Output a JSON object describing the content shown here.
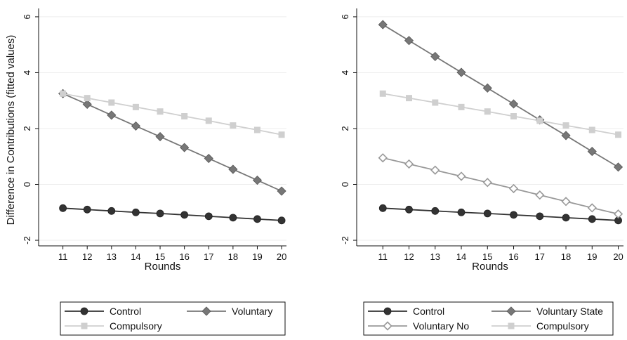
{
  "chart_data": [
    {
      "type": "line",
      "title": "",
      "xlabel": "Rounds",
      "ylabel": "Difference in Contributions (fitted values)",
      "x": [
        11,
        12,
        13,
        14,
        15,
        16,
        17,
        18,
        19,
        20
      ],
      "x_ticks": [
        "11",
        "12",
        "13",
        "14",
        "15",
        "16",
        "17",
        "18",
        "19",
        "20"
      ],
      "y_ticks": [
        "-2",
        "0",
        "2",
        "4",
        "6"
      ],
      "xlim": [
        10,
        20.2
      ],
      "ylim": [
        -2.2,
        6.3
      ],
      "grid": true,
      "legend_position": "bottom",
      "series": [
        {
          "name": "Control",
          "color": "#333333",
          "marker": "circle",
          "values": [
            -0.85,
            -0.9,
            -0.95,
            -1.0,
            -1.04,
            -1.09,
            -1.14,
            -1.19,
            -1.24,
            -1.29
          ]
        },
        {
          "name": "Voluntary",
          "color": "#777777",
          "marker": "diamond",
          "values": [
            3.25,
            2.87,
            2.48,
            2.09,
            1.71,
            1.32,
            0.93,
            0.54,
            0.15,
            -0.24
          ]
        },
        {
          "name": "Compulsory",
          "color": "#cfcfcf",
          "marker": "square",
          "values": [
            3.25,
            3.09,
            2.93,
            2.77,
            2.61,
            2.44,
            2.28,
            2.11,
            1.95,
            1.78
          ]
        }
      ]
    },
    {
      "type": "line",
      "title": "",
      "xlabel": "Rounds",
      "ylabel": "",
      "x": [
        11,
        12,
        13,
        14,
        15,
        16,
        17,
        18,
        19,
        20
      ],
      "x_ticks": [
        "11",
        "12",
        "13",
        "14",
        "15",
        "16",
        "17",
        "18",
        "19",
        "20"
      ],
      "y_ticks": [
        "-2",
        "0",
        "2",
        "4",
        "6"
      ],
      "xlim": [
        10,
        20.2
      ],
      "ylim": [
        -2.2,
        6.3
      ],
      "grid": true,
      "legend_position": "bottom",
      "series": [
        {
          "name": "Control",
          "color": "#333333",
          "marker": "circle",
          "values": [
            -0.85,
            -0.9,
            -0.95,
            -1.0,
            -1.04,
            -1.09,
            -1.14,
            -1.19,
            -1.24,
            -1.29
          ]
        },
        {
          "name": "Voluntary State",
          "color": "#777777",
          "marker": "diamond",
          "values": [
            5.72,
            5.15,
            4.58,
            4.01,
            3.45,
            2.88,
            2.31,
            1.75,
            1.18,
            0.62
          ]
        },
        {
          "name": "Voluntary No",
          "color": "#999999",
          "marker": "diamond-open",
          "values": [
            0.95,
            0.73,
            0.51,
            0.29,
            0.07,
            -0.15,
            -0.38,
            -0.61,
            -0.84,
            -1.06
          ]
        },
        {
          "name": "Compulsory",
          "color": "#cfcfcf",
          "marker": "square",
          "values": [
            3.25,
            3.09,
            2.93,
            2.77,
            2.61,
            2.44,
            2.28,
            2.11,
            1.95,
            1.78
          ]
        }
      ]
    }
  ]
}
